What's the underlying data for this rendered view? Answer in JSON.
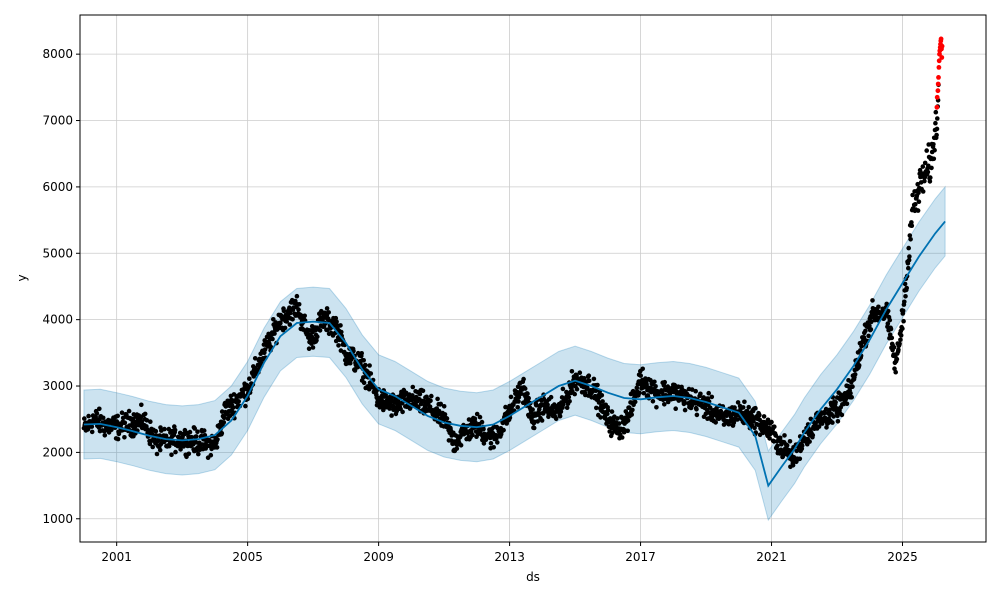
{
  "chart_data": {
    "type": "scatter",
    "xlabel": "ds",
    "ylabel": "y",
    "x_ticks": [
      "2001",
      "2005",
      "2009",
      "2013",
      "2017",
      "2021",
      "2025"
    ],
    "y_ticks": [
      1000,
      2000,
      3000,
      4000,
      5000,
      6000,
      7000,
      8000
    ],
    "xlim": [
      1999.88,
      2027.55
    ],
    "ylim": [
      650,
      8590
    ],
    "grid": true,
    "colors": {
      "observed": "#000000",
      "highlight": "#ff0000",
      "forecast": "#0072b2",
      "uncertainty": "#0072b2"
    },
    "forecast": {
      "x": [
        2000.0,
        2000.5,
        2001.0,
        2001.5,
        2002.0,
        2002.5,
        2003.0,
        2003.5,
        2004.0,
        2004.5,
        2005.0,
        2005.5,
        2006.0,
        2006.5,
        2007.0,
        2007.5,
        2008.0,
        2008.5,
        2009.0,
        2009.5,
        2010.0,
        2010.5,
        2011.0,
        2011.5,
        2012.0,
        2012.5,
        2013.0,
        2013.5,
        2014.0,
        2014.5,
        2015.0,
        2015.5,
        2016.0,
        2016.5,
        2017.0,
        2017.5,
        2018.0,
        2018.5,
        2019.0,
        2019.5,
        2020.0,
        2020.5,
        2020.9,
        2021.3,
        2021.7,
        2022.0,
        2022.5,
        2023.0,
        2023.5,
        2024.0,
        2024.5,
        2025.0,
        2025.5,
        2026.0,
        2026.3
      ],
      "yhat": [
        2420,
        2430,
        2380,
        2320,
        2250,
        2200,
        2180,
        2200,
        2260,
        2480,
        2850,
        3350,
        3750,
        3950,
        3970,
        3950,
        3650,
        3250,
        2950,
        2850,
        2700,
        2550,
        2450,
        2400,
        2380,
        2420,
        2550,
        2700,
        2850,
        3000,
        3080,
        3000,
        2900,
        2820,
        2800,
        2830,
        2850,
        2820,
        2760,
        2680,
        2600,
        2250,
        1500,
        1780,
        2050,
        2300,
        2650,
        2950,
        3300,
        3700,
        4150,
        4550,
        4950,
        5300,
        5480
      ],
      "band": 520
    },
    "observed": {
      "anchors_x": [
        2000.0,
        2000.3,
        2000.6,
        2001.0,
        2001.5,
        2001.8,
        2002.2,
        2003.0,
        2003.6,
        2004.0,
        2004.3,
        2004.7,
        2005.0,
        2005.5,
        2006.0,
        2006.5,
        2006.9,
        2007.3,
        2007.7,
        2008.0,
        2008.5,
        2009.0,
        2009.5,
        2010.0,
        2010.5,
        2011.0,
        2011.3,
        2011.6,
        2012.0,
        2012.5,
        2013.0,
        2013.4,
        2013.7,
        2014.0,
        2014.5,
        2015.0,
        2015.5,
        2016.0,
        2016.3,
        2016.6,
        2017.0,
        2017.5,
        2018.0,
        2018.5,
        2019.0,
        2019.5,
        2020.0,
        2020.5,
        2020.9,
        2021.3,
        2021.7,
        2022.0,
        2022.5,
        2023.0,
        2023.4,
        2023.8,
        2024.1,
        2024.5,
        2024.8,
        2025.0,
        2025.3,
        2025.6,
        2025.9,
        2026.1
      ],
      "anchors_y": [
        2350,
        2500,
        2420,
        2380,
        2450,
        2480,
        2150,
        2200,
        2150,
        2100,
        2600,
        2800,
        2950,
        3500,
        4000,
        4200,
        3700,
        4000,
        3900,
        3500,
        3300,
        2800,
        2700,
        2800,
        2700,
        2500,
        2150,
        2300,
        2400,
        2200,
        2600,
        3000,
        2500,
        2700,
        2600,
        3100,
        3000,
        2500,
        2350,
        2500,
        3100,
        2900,
        2900,
        2800,
        2700,
        2500,
        2600,
        2500,
        2350,
        2100,
        1900,
        2250,
        2500,
        2650,
        2900,
        3700,
        4100,
        4100,
        3300,
        4000,
        5600,
        6100,
        6400,
        7300
      ],
      "spread": 180,
      "step": 0.012
    },
    "highlight": {
      "x": [
        2026.05,
        2026.06,
        2026.08,
        2026.09,
        2026.1,
        2026.11,
        2026.12,
        2026.13,
        2026.14,
        2026.15,
        2026.16,
        2026.17,
        2026.18,
        2026.19,
        2026.2,
        2026.21
      ],
      "y": [
        7200,
        7350,
        7450,
        7550,
        7650,
        7800,
        7900,
        8000,
        8050,
        8100,
        8150,
        8200,
        8230,
        8080,
        7950,
        8120
      ]
    }
  }
}
